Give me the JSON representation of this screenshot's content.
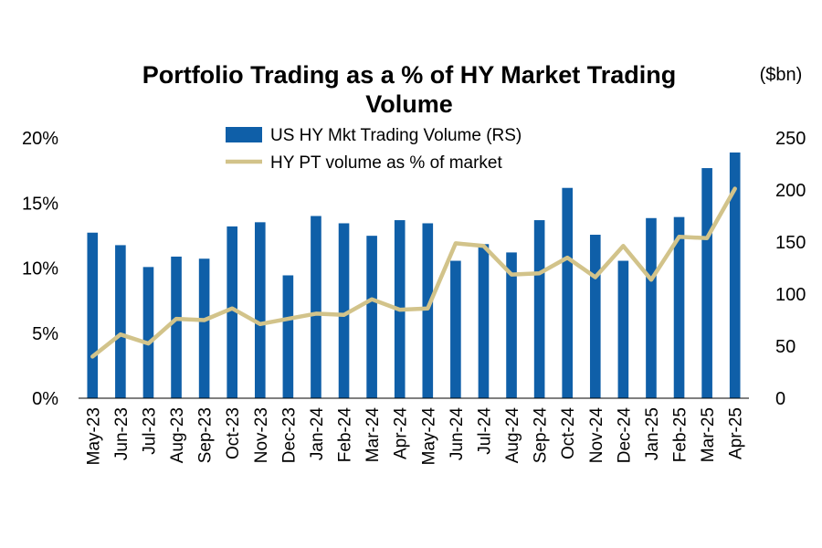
{
  "chart_data": {
    "type": "bar+line",
    "title_line1": "Portfolio Trading as a % of HY Market Trading",
    "title_line2": "Volume",
    "right_axis_unit": "($bn)",
    "categories": [
      "May-23",
      "Jun-23",
      "Jul-23",
      "Aug-23",
      "Sep-23",
      "Oct-23",
      "Nov-23",
      "Dec-23",
      "Jan-24",
      "Feb-24",
      "Mar-24",
      "Apr-24",
      "May-24",
      "Jun-24",
      "Jul-24",
      "Aug-24",
      "Sep-24",
      "Oct-24",
      "Nov-24",
      "Dec-24",
      "Jan-25",
      "Feb-25",
      "Mar-25",
      "Apr-25"
    ],
    "left_axis": {
      "ylim": [
        0,
        20
      ],
      "ticks": [
        0,
        5,
        10,
        15,
        20
      ],
      "tick_labels": [
        "0%",
        "5%",
        "10%",
        "15%",
        "20%"
      ]
    },
    "right_axis": {
      "ylim": [
        0,
        250
      ],
      "ticks": [
        0,
        50,
        100,
        150,
        200,
        250
      ],
      "tick_labels": [
        "0",
        "50",
        "100",
        "150",
        "200",
        "250"
      ]
    },
    "series": [
      {
        "name": "US HY Mkt Trading Volume (RS)",
        "kind": "bar",
        "axis": "right",
        "color": "#0f5fa8",
        "values": [
          159,
          147,
          126,
          136,
          134,
          165,
          169,
          118,
          175,
          168,
          156,
          171,
          168,
          132,
          148,
          140,
          171,
          202,
          157,
          132,
          173,
          174,
          221,
          236
        ]
      },
      {
        "name": "HY PT volume as % of market",
        "kind": "line",
        "axis": "left",
        "color": "#d2c38a",
        "values": [
          3.2,
          4.9,
          4.2,
          6.1,
          6.0,
          6.9,
          5.7,
          6.1,
          6.5,
          6.4,
          7.6,
          6.8,
          6.9,
          11.9,
          11.7,
          9.5,
          9.6,
          10.8,
          9.3,
          11.7,
          9.1,
          12.4,
          12.3,
          16.1
        ]
      }
    ]
  }
}
